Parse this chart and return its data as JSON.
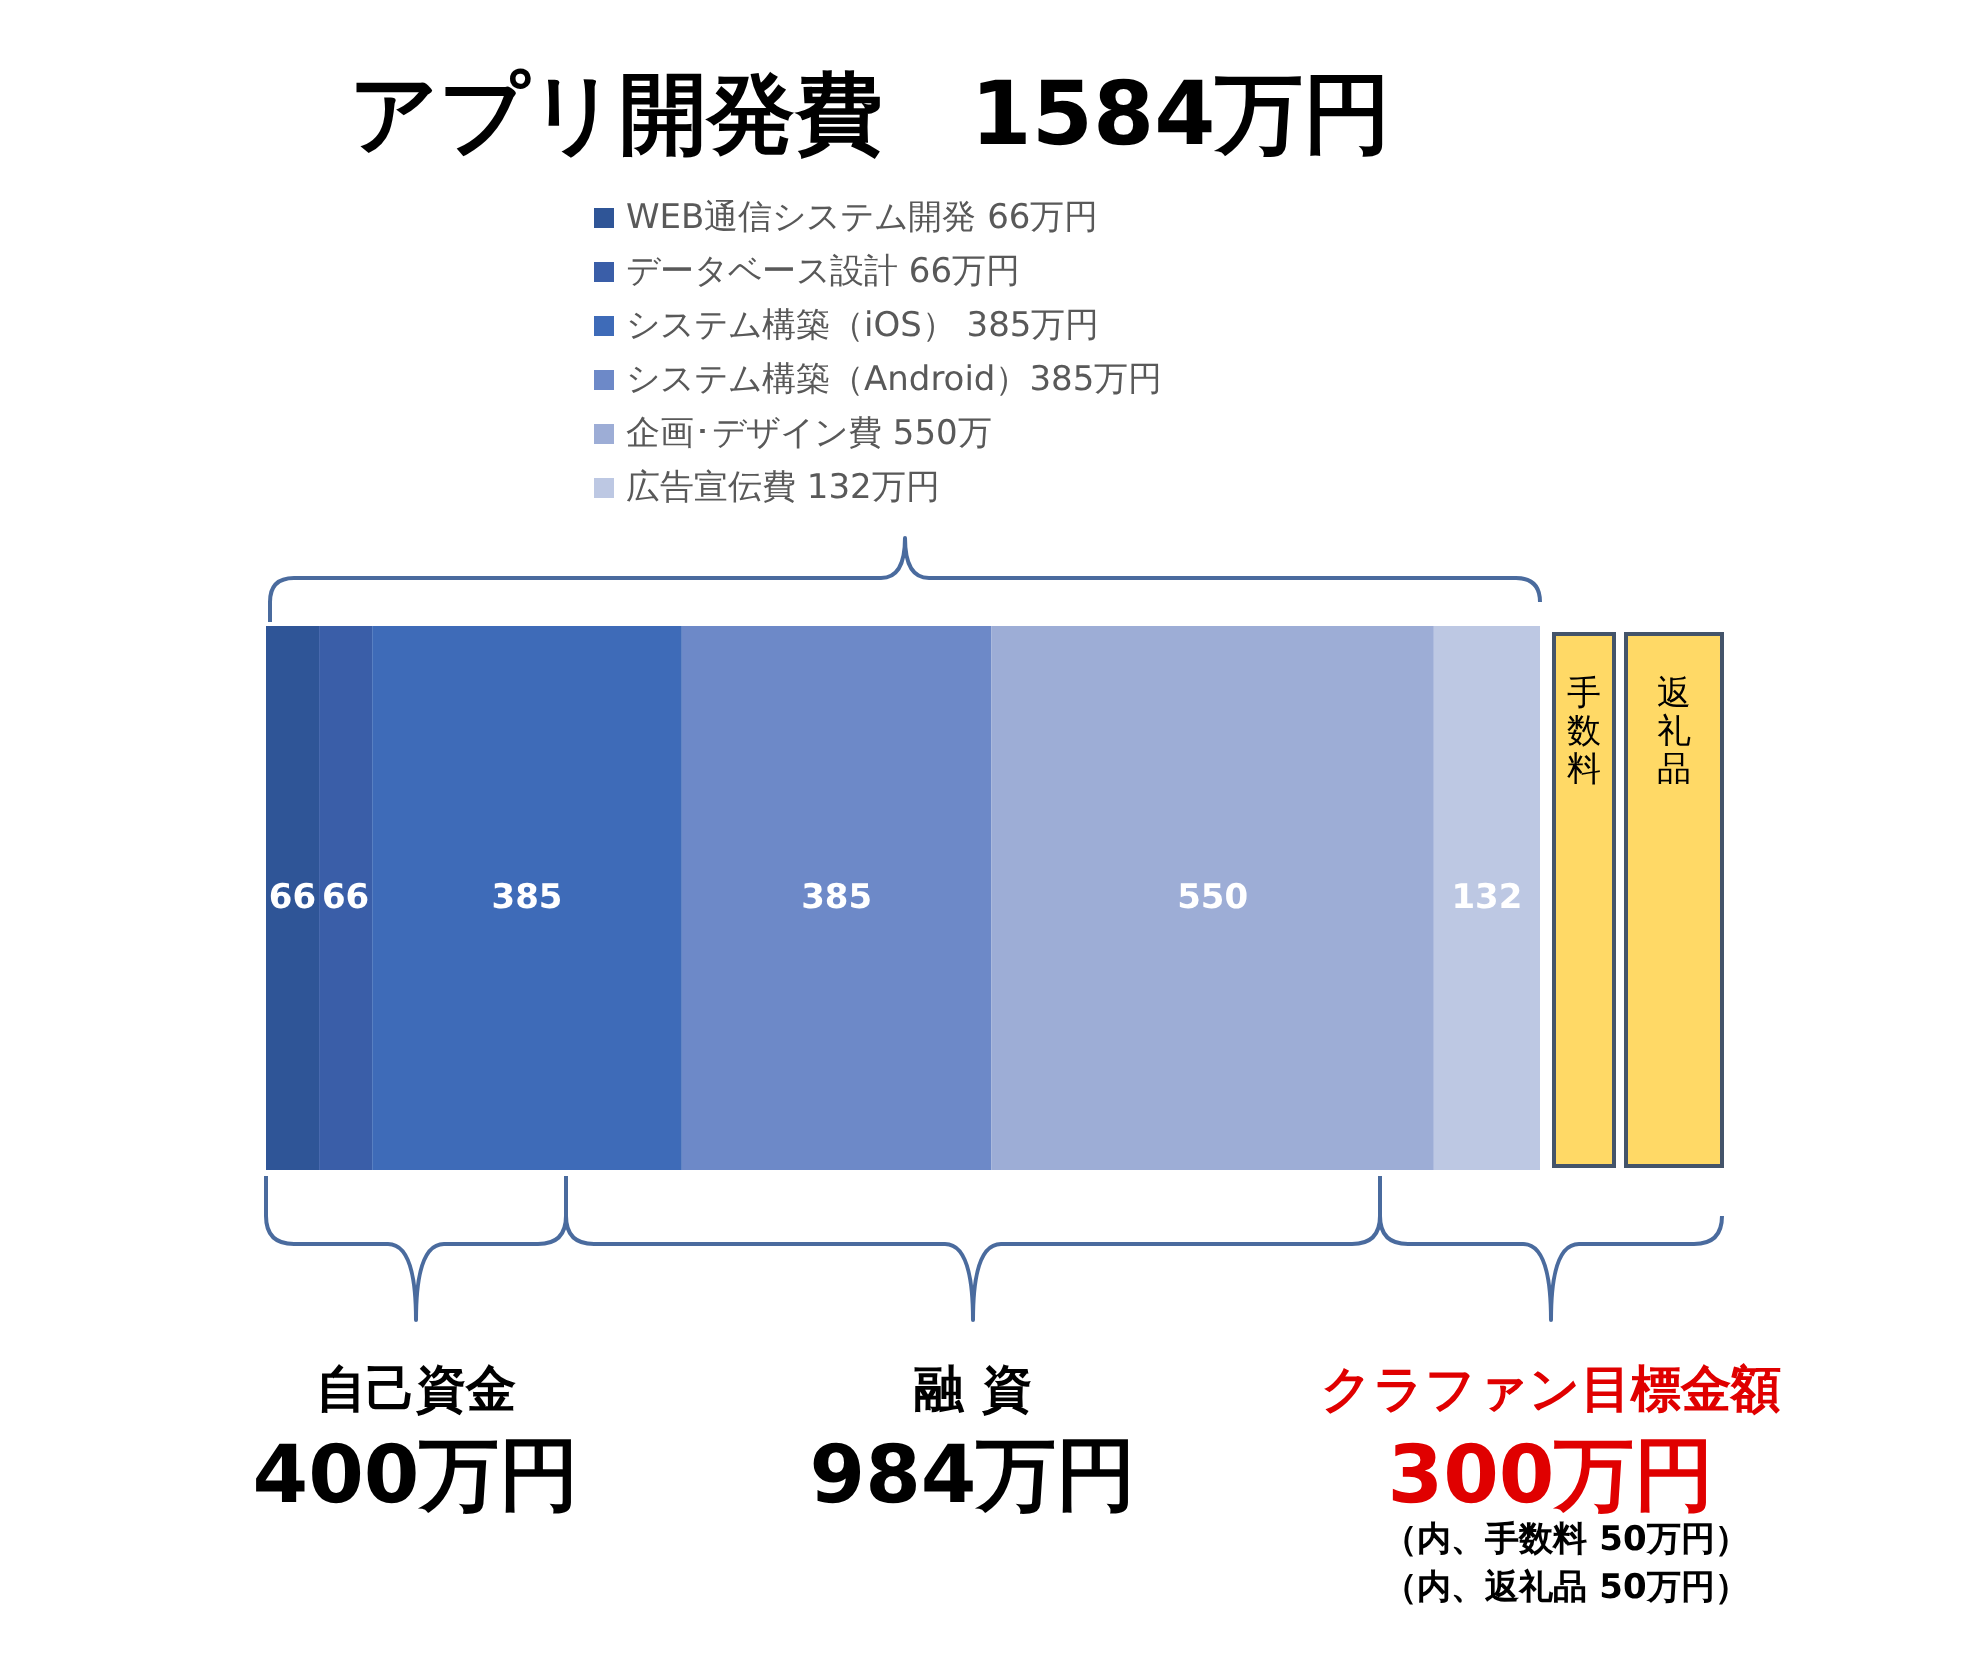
{
  "chart_data": {
    "type": "bar",
    "title": "アプリ開発費　1584万円",
    "orientation": "horizontal",
    "stacked": true,
    "categories": [
      null
    ],
    "series": [
      {
        "name": "WEB通信システム開発 66万円",
        "color": "#2f5597",
        "values": [
          66
        ]
      },
      {
        "name": "データベース設計 66万円",
        "color": "#3a5ea8",
        "values": [
          66
        ]
      },
      {
        "name": "システム構築（iOS） 385万円",
        "color": "#3e6bb8",
        "values": [
          385
        ]
      },
      {
        "name": "システム構築（Android）385万円",
        "color": "#6d89c8",
        "values": [
          385
        ]
      },
      {
        "name": "企画･デザイン費 550万",
        "color": "#9dadd6",
        "values": [
          550
        ]
      },
      {
        "name": "広告宣伝費 132万円",
        "color": "#bdc8e3",
        "values": [
          132
        ]
      }
    ],
    "data_labels": true,
    "legend": "top",
    "annotations": [
      "手数料",
      "返礼品",
      "自己資金\n400万円",
      "融 資\n984万円",
      "クラファン目標金額\n300万円",
      "（内、手数料 50万円）",
      "（内、返礼品 50万円）"
    ]
  }
}
